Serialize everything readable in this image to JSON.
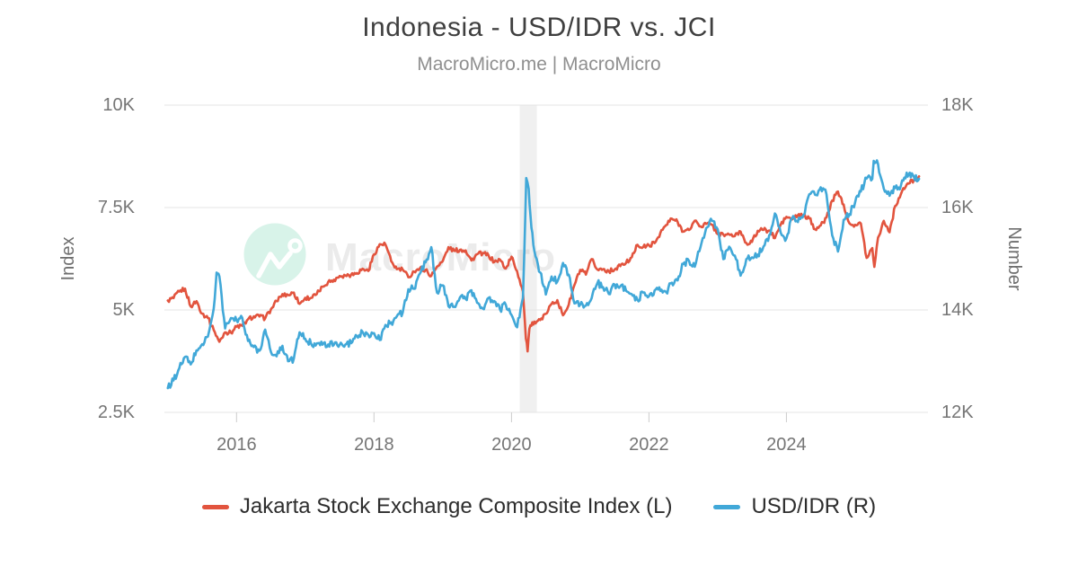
{
  "header": {
    "title": "Indonesia - USD/IDR vs. JCI",
    "subtitle": "MacroMicro.me | MacroMicro"
  },
  "watermark": {
    "text": "MacroMicro",
    "logo": "macromicro-trend-line-logo"
  },
  "colors": {
    "jci_red": "#e2543e",
    "usdidr_blue": "#41a8d8",
    "logo_mint": "#d8f3e9",
    "watermark_gray": "#ebebeb",
    "grid_gray": "#e4e4e4",
    "recession_band": "rgba(140,140,140,0.13)"
  },
  "chart_data": {
    "type": "line",
    "title": "Indonesia - USD/IDR vs. JCI",
    "subtitle": "MacroMicro.me | MacroMicro",
    "grid": "horizontal",
    "legend_position": "bottom",
    "x_axis": {
      "range": [
        2014.95,
        2026.06
      ],
      "ticks": [
        2016,
        2018,
        2020,
        2022,
        2024
      ],
      "tick_labels": [
        "2016",
        "2018",
        "2020",
        "2022",
        "2024"
      ]
    },
    "y_left": {
      "title": "Index",
      "range": [
        2500,
        10000
      ],
      "ticks": [
        10000,
        7500,
        5000,
        2500
      ],
      "tick_labels": [
        "10K",
        "7.5K",
        "5K",
        "2.5K"
      ]
    },
    "y_right": {
      "title": "Number",
      "range": [
        12000,
        18000
      ],
      "ticks": [
        18000,
        16000,
        14000,
        12000
      ],
      "tick_labels": [
        "18K",
        "16K",
        "14K",
        "12K"
      ]
    },
    "shaded_region": {
      "from": 2020.12,
      "to": 2020.37,
      "label": "2020-recession-band"
    },
    "series": [
      {
        "name": "Jakarta Stock Exchange Composite Index (L)",
        "axis": "left",
        "color": "#e2543e",
        "noise_amplitude": 55,
        "points": [
          [
            2015.0,
            5230
          ],
          [
            2015.083,
            5289
          ],
          [
            2015.167,
            5450
          ],
          [
            2015.25,
            5519
          ],
          [
            2015.333,
            5086
          ],
          [
            2015.417,
            5216
          ],
          [
            2015.5,
            4911
          ],
          [
            2015.583,
            4803
          ],
          [
            2015.667,
            4510
          ],
          [
            2015.75,
            4224
          ],
          [
            2015.833,
            4455
          ],
          [
            2015.917,
            4446
          ],
          [
            2016.0,
            4593
          ],
          [
            2016.083,
            4615
          ],
          [
            2016.167,
            4771
          ],
          [
            2016.25,
            4845
          ],
          [
            2016.333,
            4839
          ],
          [
            2016.417,
            4797
          ],
          [
            2016.5,
            5017
          ],
          [
            2016.583,
            5216
          ],
          [
            2016.667,
            5386
          ],
          [
            2016.75,
            5365
          ],
          [
            2016.833,
            5423
          ],
          [
            2016.917,
            5149
          ],
          [
            2017.0,
            5297
          ],
          [
            2017.083,
            5294
          ],
          [
            2017.167,
            5387
          ],
          [
            2017.25,
            5568
          ],
          [
            2017.333,
            5685
          ],
          [
            2017.417,
            5738
          ],
          [
            2017.5,
            5830
          ],
          [
            2017.583,
            5841
          ],
          [
            2017.667,
            5864
          ],
          [
            2017.75,
            5901
          ],
          [
            2017.833,
            6006
          ],
          [
            2017.917,
            5952
          ],
          [
            2018.0,
            6356
          ],
          [
            2018.083,
            6606
          ],
          [
            2018.167,
            6597
          ],
          [
            2018.25,
            6189
          ],
          [
            2018.333,
            5995
          ],
          [
            2018.417,
            5984
          ],
          [
            2018.5,
            5799
          ],
          [
            2018.583,
            5936
          ],
          [
            2018.667,
            6018
          ],
          [
            2018.75,
            5977
          ],
          [
            2018.833,
            5832
          ],
          [
            2018.917,
            6056
          ],
          [
            2019.0,
            6194
          ],
          [
            2019.083,
            6533
          ],
          [
            2019.167,
            6443
          ],
          [
            2019.25,
            6469
          ],
          [
            2019.333,
            6455
          ],
          [
            2019.417,
            6209
          ],
          [
            2019.5,
            6359
          ],
          [
            2019.583,
            6390
          ],
          [
            2019.667,
            6328
          ],
          [
            2019.75,
            6169
          ],
          [
            2019.833,
            6228
          ],
          [
            2019.917,
            6012
          ],
          [
            2020.0,
            6300
          ],
          [
            2020.083,
            5940
          ],
          [
            2020.167,
            5453
          ],
          [
            2020.21,
            4300
          ],
          [
            2020.235,
            3990
          ],
          [
            2020.26,
            4539
          ],
          [
            2020.333,
            4716
          ],
          [
            2020.417,
            4754
          ],
          [
            2020.5,
            4905
          ],
          [
            2020.583,
            5150
          ],
          [
            2020.667,
            5238
          ],
          [
            2020.75,
            4870
          ],
          [
            2020.833,
            5128
          ],
          [
            2020.917,
            5612
          ],
          [
            2021.0,
            5979
          ],
          [
            2021.083,
            5862
          ],
          [
            2021.167,
            6242
          ],
          [
            2021.25,
            5986
          ],
          [
            2021.333,
            5996
          ],
          [
            2021.417,
            5947
          ],
          [
            2021.5,
            5985
          ],
          [
            2021.583,
            6070
          ],
          [
            2021.667,
            6150
          ],
          [
            2021.75,
            6287
          ],
          [
            2021.833,
            6591
          ],
          [
            2021.917,
            6534
          ],
          [
            2022.0,
            6581
          ],
          [
            2022.083,
            6631
          ],
          [
            2022.167,
            6888
          ],
          [
            2022.25,
            7071
          ],
          [
            2022.333,
            7229
          ],
          [
            2022.417,
            7149
          ],
          [
            2022.5,
            6912
          ],
          [
            2022.583,
            6951
          ],
          [
            2022.667,
            7178
          ],
          [
            2022.75,
            7041
          ],
          [
            2022.833,
            7099
          ],
          [
            2022.917,
            7081
          ],
          [
            2023.0,
            6851
          ],
          [
            2023.083,
            6839
          ],
          [
            2023.167,
            6843
          ],
          [
            2023.25,
            6805
          ],
          [
            2023.333,
            6915
          ],
          [
            2023.417,
            6633
          ],
          [
            2023.5,
            6662
          ],
          [
            2023.583,
            6931
          ],
          [
            2023.667,
            6953
          ],
          [
            2023.75,
            6940
          ],
          [
            2023.833,
            6752
          ],
          [
            2023.917,
            7080
          ],
          [
            2024.0,
            7273
          ],
          [
            2024.083,
            7208
          ],
          [
            2024.167,
            7316
          ],
          [
            2024.25,
            7289
          ],
          [
            2024.333,
            7235
          ],
          [
            2024.417,
            6970
          ],
          [
            2024.5,
            7064
          ],
          [
            2024.583,
            7256
          ],
          [
            2024.667,
            7670
          ],
          [
            2024.75,
            7891
          ],
          [
            2024.833,
            7574
          ],
          [
            2024.917,
            7114
          ],
          [
            2025.0,
            7080
          ],
          [
            2025.083,
            7109
          ],
          [
            2025.167,
            6270
          ],
          [
            2025.25,
            6511
          ],
          [
            2025.28,
            6050
          ],
          [
            2025.333,
            6766
          ],
          [
            2025.417,
            7175
          ],
          [
            2025.5,
            6898
          ],
          [
            2025.583,
            7537
          ],
          [
            2025.667,
            7829
          ],
          [
            2025.75,
            8061
          ],
          [
            2025.93,
            8260
          ]
        ]
      },
      {
        "name": "USD/IDR (R)",
        "axis": "right",
        "color": "#41a8d8",
        "noise_amplitude": 70,
        "points": [
          [
            2015.0,
            12474
          ],
          [
            2015.083,
            12625
          ],
          [
            2015.167,
            12863
          ],
          [
            2015.25,
            13084
          ],
          [
            2015.333,
            12937
          ],
          [
            2015.417,
            13211
          ],
          [
            2015.5,
            13332
          ],
          [
            2015.583,
            13481
          ],
          [
            2015.667,
            14027
          ],
          [
            2015.71,
            14730
          ],
          [
            2015.75,
            14657
          ],
          [
            2015.833,
            13639
          ],
          [
            2015.917,
            13840
          ],
          [
            2016.0,
            13795
          ],
          [
            2016.083,
            13846
          ],
          [
            2016.167,
            13395
          ],
          [
            2016.25,
            13276
          ],
          [
            2016.333,
            13204
          ],
          [
            2016.417,
            13615
          ],
          [
            2016.5,
            13180
          ],
          [
            2016.583,
            13094
          ],
          [
            2016.667,
            13300
          ],
          [
            2016.75,
            12998
          ],
          [
            2016.833,
            13051
          ],
          [
            2016.917,
            13563
          ],
          [
            2017.0,
            13436
          ],
          [
            2017.083,
            13343
          ],
          [
            2017.167,
            13347
          ],
          [
            2017.25,
            13321
          ],
          [
            2017.333,
            13327
          ],
          [
            2017.417,
            13321
          ],
          [
            2017.5,
            13319
          ],
          [
            2017.583,
            13323
          ],
          [
            2017.667,
            13351
          ],
          [
            2017.75,
            13492
          ],
          [
            2017.833,
            13572
          ],
          [
            2017.917,
            13514
          ],
          [
            2018.0,
            13548
          ],
          [
            2018.083,
            13413
          ],
          [
            2018.167,
            13707
          ],
          [
            2018.25,
            13756
          ],
          [
            2018.333,
            13877
          ],
          [
            2018.417,
            13951
          ],
          [
            2018.5,
            14404
          ],
          [
            2018.583,
            14413
          ],
          [
            2018.667,
            14711
          ],
          [
            2018.75,
            14929
          ],
          [
            2018.833,
            15227
          ],
          [
            2018.917,
            14339
          ],
          [
            2019.0,
            14481
          ],
          [
            2019.083,
            14072
          ],
          [
            2019.167,
            14062
          ],
          [
            2019.25,
            14244
          ],
          [
            2019.333,
            14215
          ],
          [
            2019.417,
            14385
          ],
          [
            2019.5,
            14141
          ],
          [
            2019.583,
            14026
          ],
          [
            2019.667,
            14237
          ],
          [
            2019.75,
            14174
          ],
          [
            2019.833,
            14008
          ],
          [
            2019.917,
            14102
          ],
          [
            2020.0,
            13901
          ],
          [
            2020.083,
            13662
          ],
          [
            2020.167,
            14234
          ],
          [
            2020.215,
            16575
          ],
          [
            2020.25,
            16367
          ],
          [
            2020.29,
            15600
          ],
          [
            2020.333,
            15157
          ],
          [
            2020.417,
            14733
          ],
          [
            2020.5,
            14302
          ],
          [
            2020.583,
            14653
          ],
          [
            2020.667,
            14554
          ],
          [
            2020.75,
            14918
          ],
          [
            2020.833,
            14690
          ],
          [
            2020.917,
            14128
          ],
          [
            2021.0,
            14105
          ],
          [
            2021.083,
            14084
          ],
          [
            2021.167,
            14229
          ],
          [
            2021.25,
            14525
          ],
          [
            2021.333,
            14445
          ],
          [
            2021.417,
            14310
          ],
          [
            2021.5,
            14496
          ],
          [
            2021.583,
            14463
          ],
          [
            2021.667,
            14375
          ],
          [
            2021.75,
            14307
          ],
          [
            2021.833,
            14199
          ],
          [
            2021.917,
            14340
          ],
          [
            2022.0,
            14269
          ],
          [
            2022.083,
            14381
          ],
          [
            2022.167,
            14371
          ],
          [
            2022.25,
            14349
          ],
          [
            2022.333,
            14532
          ],
          [
            2022.417,
            14578
          ],
          [
            2022.5,
            14898
          ],
          [
            2022.583,
            14958
          ],
          [
            2022.667,
            14843
          ],
          [
            2022.75,
            15228
          ],
          [
            2022.833,
            15598
          ],
          [
            2022.917,
            15741
          ],
          [
            2023.0,
            15573
          ],
          [
            2023.083,
            14993
          ],
          [
            2023.167,
            15235
          ],
          [
            2023.25,
            15062
          ],
          [
            2023.333,
            14670
          ],
          [
            2023.417,
            14993
          ],
          [
            2023.5,
            15026
          ],
          [
            2023.583,
            15083
          ],
          [
            2023.667,
            15238
          ],
          [
            2023.75,
            15460
          ],
          [
            2023.833,
            15885
          ],
          [
            2023.917,
            15510
          ],
          [
            2024.0,
            15397
          ],
          [
            2024.083,
            15788
          ],
          [
            2024.167,
            15715
          ],
          [
            2024.25,
            15855
          ],
          [
            2024.333,
            16260
          ],
          [
            2024.417,
            16250
          ],
          [
            2024.5,
            16394
          ],
          [
            2024.583,
            16260
          ],
          [
            2024.667,
            15455
          ],
          [
            2024.75,
            15140
          ],
          [
            2024.833,
            15760
          ],
          [
            2024.917,
            15870
          ],
          [
            2025.0,
            16102
          ],
          [
            2025.083,
            16312
          ],
          [
            2025.167,
            16566
          ],
          [
            2025.25,
            16560
          ],
          [
            2025.27,
            16910
          ],
          [
            2025.333,
            16850
          ],
          [
            2025.417,
            16370
          ],
          [
            2025.5,
            16230
          ],
          [
            2025.583,
            16380
          ],
          [
            2025.667,
            16430
          ],
          [
            2025.75,
            16680
          ],
          [
            2025.93,
            16560
          ]
        ]
      }
    ]
  }
}
